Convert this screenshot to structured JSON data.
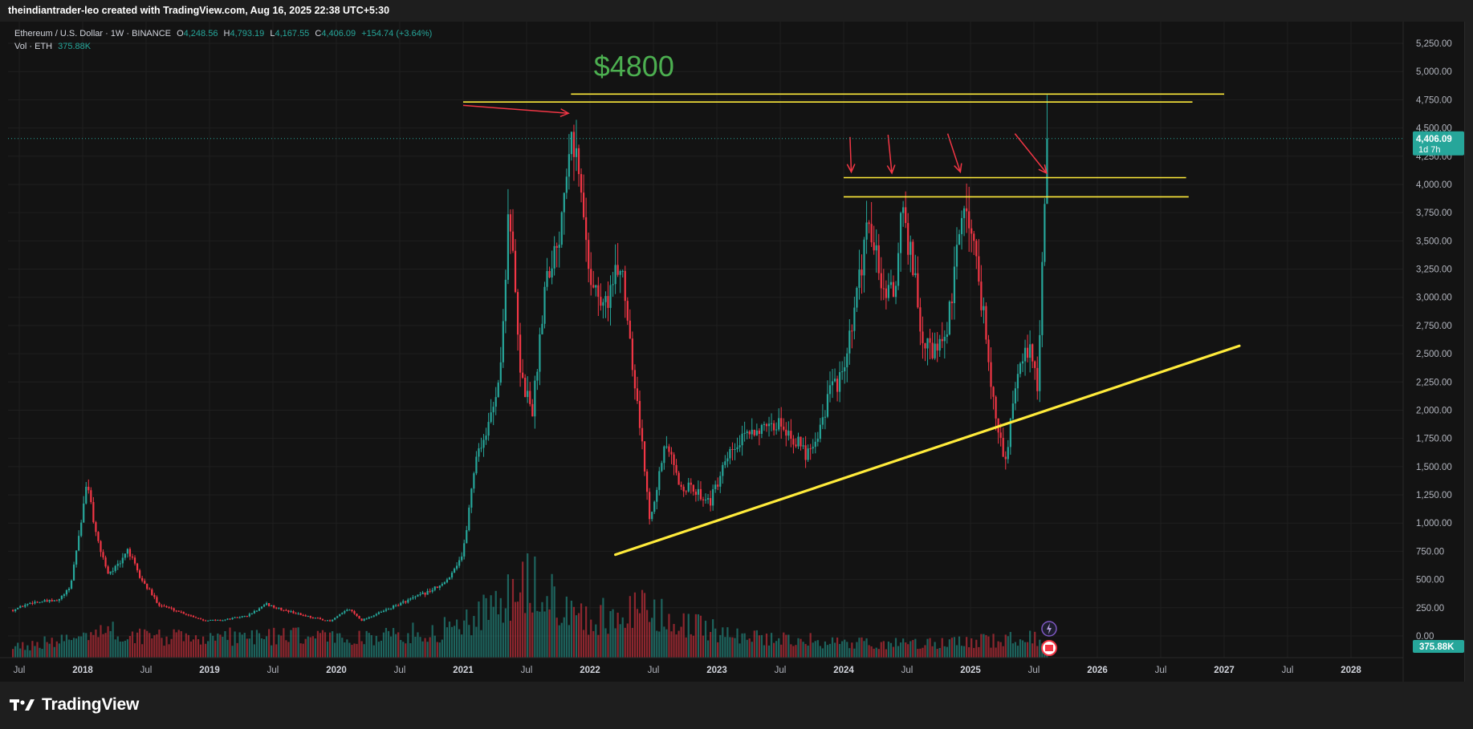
{
  "header": {
    "attribution": "theindiantrader-leo created with TradingView.com, Aug 16, 2025 22:38 UTC+5:30"
  },
  "legend": {
    "symbol": "Ethereum / U.S. Dollar · 1W · BINANCE",
    "open_label": "O",
    "open": "4,248.56",
    "high_label": "H",
    "high": "4,793.19",
    "low_label": "L",
    "low": "4,167.55",
    "close_label": "C",
    "close": "4,406.09",
    "change": "+154.74 (+3.64%)",
    "volume_label": "Vol · ETH",
    "volume": "375.88K"
  },
  "price_badge": {
    "price": "4,406.09",
    "countdown": "1d 7h"
  },
  "volume_badge": "375.88K",
  "annotation": "$4800",
  "brand": {
    "name": "TradingView"
  },
  "colors": {
    "up": "#26a69a",
    "down": "#f23645",
    "trend": "#ffeb3b",
    "arrow": "#f23645",
    "annotation": "#4caf50",
    "background": "#131313"
  },
  "chart_data": {
    "type": "candlestick",
    "title": "",
    "instrument": "Ethereum / U.S. Dollar",
    "interval": "1W",
    "exchange": "BINANCE",
    "ylim": [
      -250,
      5250
    ],
    "y_ticks": [
      "5,250.00",
      "5,000.00",
      "4,750.00",
      "4,500.00",
      "4,250.00",
      "4,000.00",
      "3,750.00",
      "3,500.00",
      "3,250.00",
      "3,000.00",
      "2,750.00",
      "2,500.00",
      "2,250.00",
      "2,000.00",
      "1,750.00",
      "1,500.00",
      "1,250.00",
      "1,000.00",
      "750.00",
      "500.00",
      "250.00",
      "0.00"
    ],
    "x_ticks": [
      {
        "t": 2017.5,
        "label": "Jul"
      },
      {
        "t": 2018.0,
        "label": "2018"
      },
      {
        "t": 2018.5,
        "label": "Jul"
      },
      {
        "t": 2019.0,
        "label": "2019"
      },
      {
        "t": 2019.5,
        "label": "Jul"
      },
      {
        "t": 2020.0,
        "label": "2020"
      },
      {
        "t": 2020.5,
        "label": "Jul"
      },
      {
        "t": 2021.0,
        "label": "2021"
      },
      {
        "t": 2021.5,
        "label": "Jul"
      },
      {
        "t": 2022.0,
        "label": "2022"
      },
      {
        "t": 2022.5,
        "label": "Jul"
      },
      {
        "t": 2023.0,
        "label": "2023"
      },
      {
        "t": 2023.5,
        "label": "Jul"
      },
      {
        "t": 2024.0,
        "label": "2024"
      },
      {
        "t": 2024.5,
        "label": "Jul"
      },
      {
        "t": 2025.0,
        "label": "2025"
      },
      {
        "t": 2025.5,
        "label": "Jul"
      },
      {
        "t": 2026.0,
        "label": "2026"
      },
      {
        "t": 2026.5,
        "label": "Jul"
      },
      {
        "t": 2027.0,
        "label": "2027"
      },
      {
        "t": 2027.5,
        "label": "Jul"
      },
      {
        "t": 2028.0,
        "label": "2028"
      }
    ],
    "close_path": [
      [
        2017.45,
        230
      ],
      [
        2017.6,
        300
      ],
      [
        2017.8,
        310
      ],
      [
        2017.9,
        420
      ],
      [
        2018.0,
        1100
      ],
      [
        2018.04,
        1380
      ],
      [
        2018.1,
        900
      ],
      [
        2018.2,
        560
      ],
      [
        2018.3,
        640
      ],
      [
        2018.35,
        780
      ],
      [
        2018.45,
        520
      ],
      [
        2018.6,
        280
      ],
      [
        2018.8,
        200
      ],
      [
        2018.95,
        140
      ],
      [
        2019.1,
        140
      ],
      [
        2019.3,
        180
      ],
      [
        2019.45,
        280
      ],
      [
        2019.55,
        240
      ],
      [
        2019.75,
        180
      ],
      [
        2019.95,
        130
      ],
      [
        2020.1,
        240
      ],
      [
        2020.2,
        140
      ],
      [
        2020.35,
        210
      ],
      [
        2020.55,
        310
      ],
      [
        2020.7,
        380
      ],
      [
        2020.85,
        460
      ],
      [
        2021.0,
        730
      ],
      [
        2021.1,
        1600
      ],
      [
        2021.2,
        1850
      ],
      [
        2021.3,
        2400
      ],
      [
        2021.36,
        3900
      ],
      [
        2021.45,
        2300
      ],
      [
        2021.55,
        2000
      ],
      [
        2021.65,
        3200
      ],
      [
        2021.75,
        3500
      ],
      [
        2021.85,
        4600
      ],
      [
        2021.92,
        4000
      ],
      [
        2022.0,
        3200
      ],
      [
        2022.1,
        2900
      ],
      [
        2022.25,
        3300
      ],
      [
        2022.4,
        1800
      ],
      [
        2022.47,
        1050
      ],
      [
        2022.6,
        1700
      ],
      [
        2022.7,
        1350
      ],
      [
        2022.8,
        1300
      ],
      [
        2022.95,
        1200
      ],
      [
        2023.1,
        1600
      ],
      [
        2023.3,
        1850
      ],
      [
        2023.4,
        1800
      ],
      [
        2023.5,
        1900
      ],
      [
        2023.7,
        1620
      ],
      [
        2023.8,
        1800
      ],
      [
        2023.9,
        2200
      ],
      [
        2024.0,
        2300
      ],
      [
        2024.12,
        3100
      ],
      [
        2024.2,
        3700
      ],
      [
        2024.3,
        3100
      ],
      [
        2024.4,
        3000
      ],
      [
        2024.45,
        3750
      ],
      [
        2024.55,
        3300
      ],
      [
        2024.6,
        2650
      ],
      [
        2024.7,
        2500
      ],
      [
        2024.8,
        2600
      ],
      [
        2024.9,
        3400
      ],
      [
        2024.95,
        3900
      ],
      [
        2025.05,
        3300
      ],
      [
        2025.12,
        2700
      ],
      [
        2025.2,
        1900
      ],
      [
        2025.27,
        1550
      ],
      [
        2025.35,
        2100
      ],
      [
        2025.4,
        2500
      ],
      [
        2025.5,
        2500
      ],
      [
        2025.53,
        2200
      ],
      [
        2025.58,
        3700
      ],
      [
        2025.62,
        4406
      ]
    ],
    "volume_path": [
      [
        2017.45,
        25
      ],
      [
        2017.9,
        40
      ],
      [
        2018.05,
        65
      ],
      [
        2018.3,
        55
      ],
      [
        2018.7,
        45
      ],
      [
        2019.4,
        50
      ],
      [
        2020.2,
        45
      ],
      [
        2020.8,
        60
      ],
      [
        2021.3,
        120
      ],
      [
        2021.5,
        170
      ],
      [
        2022.0,
        90
      ],
      [
        2022.4,
        110
      ],
      [
        2022.8,
        70
      ],
      [
        2023.4,
        45
      ],
      [
        2024.0,
        35
      ],
      [
        2024.5,
        30
      ],
      [
        2025.0,
        35
      ],
      [
        2025.4,
        45
      ],
      [
        2025.62,
        40
      ]
    ],
    "annotations": {
      "resistance_4800": {
        "t1": 2021.85,
        "t2": 2027.0,
        "price": 4800
      },
      "resistance_upper_short": {
        "t1": 2021.0,
        "t2": 2026.75,
        "price": 4730
      },
      "range_high": {
        "t1": 2024.0,
        "t2": 2026.7,
        "price": 4060
      },
      "range_low": {
        "t1": 2024.0,
        "t2": 2026.72,
        "price": 3890
      },
      "trendline": {
        "t1": 2022.2,
        "p1": 720,
        "t2": 2027.12,
        "p2": 2570
      },
      "arrows": [
        {
          "t1": 2021.0,
          "p1": 4700,
          "t2": 2021.83,
          "p2": 4630
        },
        {
          "t1": 2024.05,
          "p1": 4420,
          "t2": 2024.06,
          "p2": 4110
        },
        {
          "t1": 2024.35,
          "p1": 4440,
          "t2": 2024.38,
          "p2": 4100
        },
        {
          "t1": 2024.82,
          "p1": 4450,
          "t2": 2024.92,
          "p2": 4110
        },
        {
          "t1": 2025.35,
          "p1": 4450,
          "t2": 2025.6,
          "p2": 4100
        }
      ]
    }
  }
}
